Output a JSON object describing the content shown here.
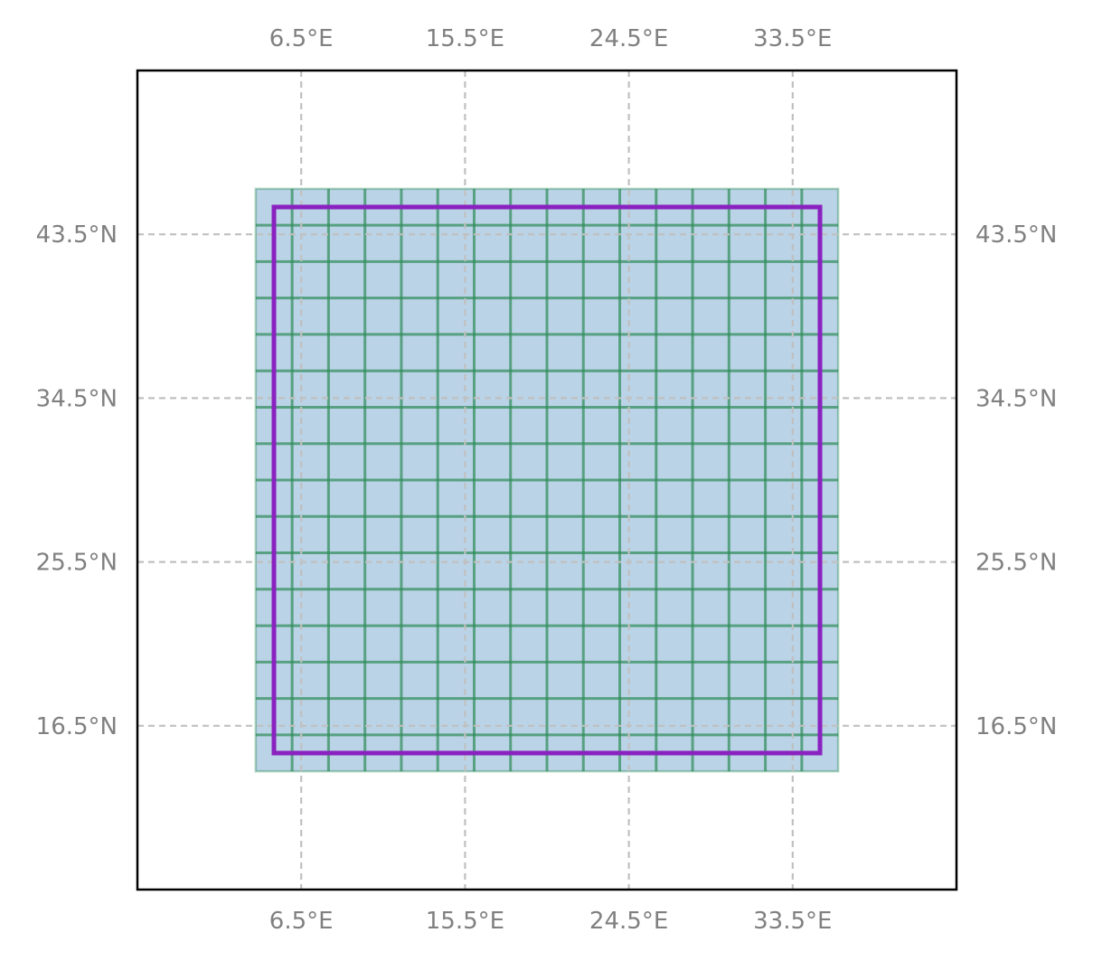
{
  "map": {
    "extent": {
      "lon_min": -2.5,
      "lon_max": 42.5,
      "lat_min": 7.5,
      "lat_max": 52.5
    },
    "graticule": {
      "lons": [
        6.5,
        15.5,
        24.5,
        33.5
      ],
      "lats": [
        16.5,
        25.5,
        34.5,
        43.5
      ],
      "lon_labels": [
        "6.5°E",
        "15.5°E",
        "24.5°E",
        "33.5°E"
      ],
      "lat_labels": [
        "16.5°N",
        "25.5°N",
        "34.5°N",
        "43.5°N"
      ],
      "color": "#c0c0c0",
      "style": "dashed"
    },
    "tile_grid": {
      "lon_min": 4.0,
      "lon_max": 36.0,
      "lat_min": 14.0,
      "lat_max": 46.0,
      "step": 2.0,
      "fill_color": "#bad3e6",
      "line_color": "#2e8b57"
    },
    "region_box": {
      "lon_min": 5.0,
      "lon_max": 35.0,
      "lat_min": 15.0,
      "lat_max": 45.0,
      "color": "#8a22c0"
    }
  }
}
